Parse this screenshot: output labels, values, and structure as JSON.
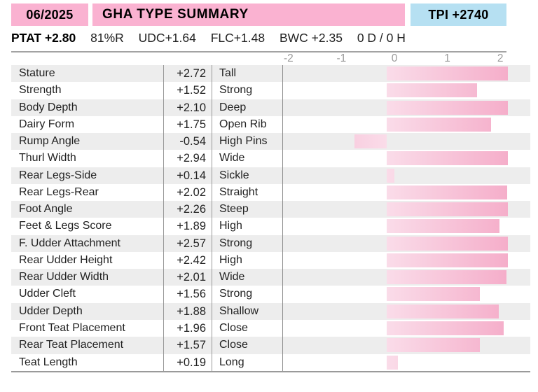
{
  "header": {
    "date": "06/2025",
    "title": "GHA TYPE SUMMARY",
    "tpi": "TPI +2740",
    "pink_color": "#fab2d1",
    "blue_color": "#b6e0f2"
  },
  "summary_line": {
    "ptat": "PTAT +2.80",
    "reliability": "81%R",
    "udc": "UDC+1.64",
    "flc": "FLC+1.48",
    "bwc": "BWC +2.35",
    "daughters_herds": "0 D /  0 H"
  },
  "chart_data": {
    "type": "bar",
    "orientation": "horizontal",
    "title": "GHA TYPE SUMMARY",
    "axis_ticks": [
      "-2",
      "-1",
      "0",
      "1",
      "2"
    ],
    "xlim": [
      -2,
      2
    ],
    "bars_clipped_at": 2.04,
    "zero_baseline": 0,
    "grid": false,
    "bar_color_light": "#fadce9",
    "bar_color_dark": "#f5aeca",
    "row_stripe_color": "#ededed",
    "rows": [
      {
        "trait": "Stature",
        "value": "+2.72",
        "v": 2.72,
        "descriptor": "Tall"
      },
      {
        "trait": "Strength",
        "value": "+1.52",
        "v": 1.52,
        "descriptor": "Strong"
      },
      {
        "trait": "Body Depth",
        "value": "+2.10",
        "v": 2.1,
        "descriptor": "Deep"
      },
      {
        "trait": "Dairy Form",
        "value": "+1.75",
        "v": 1.75,
        "descriptor": "Open Rib"
      },
      {
        "trait": "Rump Angle",
        "value": "-0.54",
        "v": -0.54,
        "descriptor": "High Pins"
      },
      {
        "trait": "Thurl Width",
        "value": "+2.94",
        "v": 2.94,
        "descriptor": "Wide"
      },
      {
        "trait": "Rear Legs-Side",
        "value": "+0.14",
        "v": 0.14,
        "descriptor": "Sickle"
      },
      {
        "trait": "Rear Legs-Rear",
        "value": "+2.02",
        "v": 2.02,
        "descriptor": "Straight"
      },
      {
        "trait": "Foot Angle",
        "value": "+2.26",
        "v": 2.26,
        "descriptor": "Steep"
      },
      {
        "trait": "Feet & Legs Score",
        "value": "+1.89",
        "v": 1.89,
        "descriptor": "High"
      },
      {
        "trait": "F. Udder Attachment",
        "value": "+2.57",
        "v": 2.57,
        "descriptor": "Strong"
      },
      {
        "trait": "Rear Udder Height",
        "value": "+2.42",
        "v": 2.42,
        "descriptor": "High"
      },
      {
        "trait": "Rear Udder Width",
        "value": "+2.01",
        "v": 2.01,
        "descriptor": "Wide"
      },
      {
        "trait": "Udder Cleft",
        "value": "+1.56",
        "v": 1.56,
        "descriptor": "Strong"
      },
      {
        "trait": "Udder Depth",
        "value": "+1.88",
        "v": 1.88,
        "descriptor": "Shallow"
      },
      {
        "trait": "Front Teat Placement",
        "value": "+1.96",
        "v": 1.96,
        "descriptor": "Close"
      },
      {
        "trait": "Rear Teat Placement",
        "value": "+1.57",
        "v": 1.57,
        "descriptor": "Close"
      },
      {
        "trait": "Teat Length",
        "value": "+0.19",
        "v": 0.19,
        "descriptor": "Long"
      }
    ]
  }
}
